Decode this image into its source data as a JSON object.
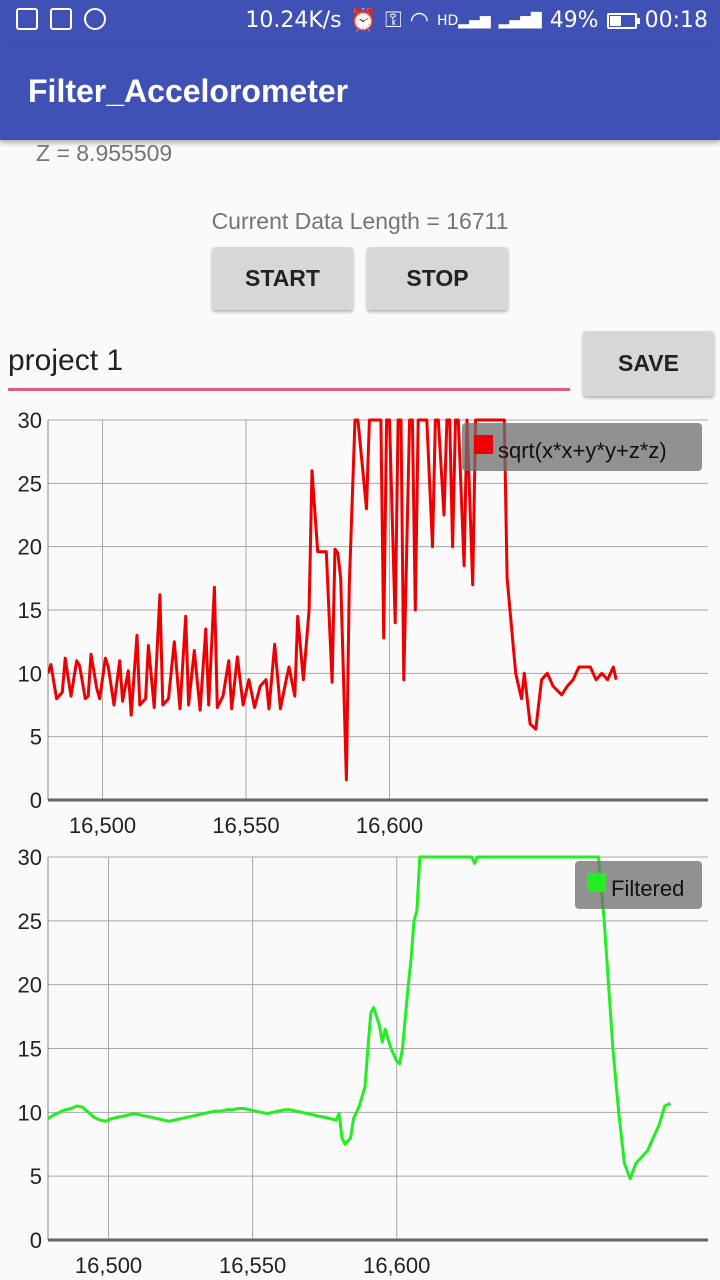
{
  "status_bar": {
    "net_speed": "10.24K/s",
    "battery": "49%",
    "battery_level": 0.49,
    "time": "00:18",
    "icons": [
      "image-icon",
      "sd-card-icon",
      "more-icon",
      "alarm-icon",
      "key-icon",
      "wifi-icon",
      "hd-signal-icon",
      "signal-icon",
      "battery-icon"
    ]
  },
  "app_bar": {
    "title": "Filter_Accelorometer"
  },
  "readout": {
    "z": "Z = 8.955509"
  },
  "data_length": "Current Data Length = 16711",
  "buttons": {
    "start": "START",
    "stop": "STOP",
    "save": "SAVE"
  },
  "project_input": {
    "value": "project 1"
  },
  "colors": {
    "primary": "#3f51b5",
    "accent": "#e05a86",
    "raw": "#ee0000",
    "filtered": "#22ee22"
  },
  "chart_data": [
    {
      "type": "line",
      "xlim": [
        16481,
        16711
      ],
      "ylim": [
        0,
        30
      ],
      "x_ticks": [
        16500,
        16550,
        16600
      ],
      "x_tick_labels": [
        "16,500",
        "16,550",
        "16,600"
      ],
      "y_ticks": [
        0,
        5,
        10,
        15,
        20,
        25,
        30
      ],
      "grid": true,
      "legend_position": "top-right",
      "series": [
        {
          "name": "sqrt(x*x+y*y+z*z)",
          "color": "#ee0000",
          "points": [
            [
              16481,
              10
            ],
            [
              16482,
              10.7
            ],
            [
              16484,
              8
            ],
            [
              16486,
              8.5
            ],
            [
              16487,
              11.2
            ],
            [
              16489,
              8.2
            ],
            [
              16491,
              11
            ],
            [
              16492,
              10.6
            ],
            [
              16494,
              8
            ],
            [
              16495,
              8.2
            ],
            [
              16496,
              11.5
            ],
            [
              16498,
              8.8
            ],
            [
              16499,
              8
            ],
            [
              16501,
              11.2
            ],
            [
              16502,
              10.5
            ],
            [
              16504,
              7.5
            ],
            [
              16506,
              11
            ],
            [
              16507,
              7.8
            ],
            [
              16509,
              10.2
            ],
            [
              16510,
              6.7
            ],
            [
              16512,
              13
            ],
            [
              16513,
              7.5
            ],
            [
              16515,
              8
            ],
            [
              16516,
              12.2
            ],
            [
              16518,
              7.3
            ],
            [
              16520,
              16.2
            ],
            [
              16521,
              7.5
            ],
            [
              16523,
              8
            ],
            [
              16525,
              12.5
            ],
            [
              16527,
              7.2
            ],
            [
              16529,
              14.5
            ],
            [
              16530,
              7.5
            ],
            [
              16532,
              11.8
            ],
            [
              16534,
              7.1
            ],
            [
              16536,
              13.5
            ],
            [
              16537,
              7.5
            ],
            [
              16539,
              16.8
            ],
            [
              16540,
              7.3
            ],
            [
              16542,
              8.2
            ],
            [
              16544,
              11
            ],
            [
              16545,
              7.2
            ],
            [
              16547,
              11.3
            ],
            [
              16549,
              7.5
            ],
            [
              16551,
              9.5
            ],
            [
              16553,
              7.3
            ],
            [
              16555,
              9
            ],
            [
              16557,
              9.5
            ],
            [
              16558,
              7.2
            ],
            [
              16560,
              12.3
            ],
            [
              16562,
              7.2
            ],
            [
              16564,
              9.5
            ],
            [
              16565,
              10.5
            ],
            [
              16567,
              8.2
            ],
            [
              16568,
              14.5
            ],
            [
              16570,
              9.5
            ],
            [
              16572,
              15
            ],
            [
              16573,
              26
            ],
            [
              16575,
              19.6
            ],
            [
              16578,
              19.6
            ],
            [
              16580,
              9.3
            ],
            [
              16581,
              19.8
            ],
            [
              16582,
              19.5
            ],
            [
              16583,
              17.5
            ],
            [
              16585,
              1.6
            ],
            [
              16586,
              17
            ],
            [
              16588,
              30
            ],
            [
              16589,
              30
            ],
            [
              16592,
              23
            ],
            [
              16593,
              30
            ],
            [
              16595,
              30
            ],
            [
              16597,
              30
            ],
            [
              16598,
              12.8
            ],
            [
              16599,
              30
            ],
            [
              16600,
              30
            ],
            [
              16602,
              14
            ],
            [
              16603,
              30
            ],
            [
              16604,
              30
            ],
            [
              16605,
              9.5
            ],
            [
              16607,
              30
            ],
            [
              16608,
              30
            ],
            [
              16609,
              15
            ],
            [
              16610,
              30
            ],
            [
              16612,
              30
            ],
            [
              16613,
              30
            ],
            [
              16615,
              20
            ],
            [
              16616,
              30
            ],
            [
              16617,
              30
            ],
            [
              16619,
              22.5
            ],
            [
              16620,
              30
            ],
            [
              16621,
              30
            ],
            [
              16622,
              20
            ],
            [
              16623,
              30
            ],
            [
              16624,
              30
            ],
            [
              16626,
              18.5
            ],
            [
              16627,
              30
            ],
            [
              16629,
              17
            ],
            [
              16630,
              30
            ],
            [
              16632,
              30
            ],
            [
              16633,
              30
            ],
            [
              16634,
              30
            ],
            [
              16635,
              30
            ],
            [
              16636,
              30
            ],
            [
              16637,
              30
            ],
            [
              16638,
              30
            ],
            [
              16639,
              30
            ],
            [
              16640,
              30
            ],
            [
              16641,
              17.5
            ],
            [
              16644,
              10
            ],
            [
              16646,
              8
            ],
            [
              16647,
              10
            ],
            [
              16649,
              6
            ],
            [
              16651,
              5.6
            ],
            [
              16653,
              9.5
            ],
            [
              16655,
              10
            ],
            [
              16657,
              9
            ],
            [
              16660,
              8.3
            ],
            [
              16662,
              9
            ],
            [
              16664,
              9.5
            ],
            [
              16666,
              10.5
            ],
            [
              16668,
              10.5
            ],
            [
              16670,
              10.5
            ],
            [
              16672,
              9.5
            ],
            [
              16674,
              10
            ],
            [
              16676,
              9.5
            ],
            [
              16678,
              10.5
            ],
            [
              16679,
              9.5
            ]
          ]
        }
      ]
    },
    {
      "type": "line",
      "xlim": [
        16479,
        16708
      ],
      "ylim": [
        0,
        30
      ],
      "x_ticks": [
        16500,
        16550,
        16600
      ],
      "x_tick_labels": [
        "16,500",
        "16,550",
        "16,600"
      ],
      "y_ticks": [
        0,
        5,
        10,
        15,
        20,
        25,
        30
      ],
      "grid": true,
      "legend_position": "top-right",
      "series": [
        {
          "name": "Filtered",
          "color": "#22ee22",
          "points": [
            [
              16479,
              9.5
            ],
            [
              16481,
              9.8
            ],
            [
              16483,
              10
            ],
            [
              16485,
              10.2
            ],
            [
              16487,
              10.3
            ],
            [
              16489,
              10.5
            ],
            [
              16491,
              10.4
            ],
            [
              16493,
              10
            ],
            [
              16495,
              9.6
            ],
            [
              16497,
              9.4
            ],
            [
              16499,
              9.3
            ],
            [
              16501,
              9.5
            ],
            [
              16503,
              9.6
            ],
            [
              16505,
              9.7
            ],
            [
              16507,
              9.8
            ],
            [
              16509,
              9.9
            ],
            [
              16511,
              9.8
            ],
            [
              16513,
              9.7
            ],
            [
              16515,
              9.6
            ],
            [
              16517,
              9.5
            ],
            [
              16519,
              9.4
            ],
            [
              16521,
              9.3
            ],
            [
              16523,
              9.4
            ],
            [
              16525,
              9.5
            ],
            [
              16527,
              9.6
            ],
            [
              16529,
              9.7
            ],
            [
              16531,
              9.8
            ],
            [
              16533,
              9.9
            ],
            [
              16535,
              10
            ],
            [
              16537,
              10.1
            ],
            [
              16539,
              10.1
            ],
            [
              16541,
              10.2
            ],
            [
              16543,
              10.2
            ],
            [
              16545,
              10.3
            ],
            [
              16547,
              10.3
            ],
            [
              16549,
              10.2
            ],
            [
              16551,
              10.1
            ],
            [
              16553,
              10
            ],
            [
              16555,
              9.9
            ],
            [
              16557,
              10
            ],
            [
              16559,
              10.1
            ],
            [
              16561,
              10.2
            ],
            [
              16563,
              10.2
            ],
            [
              16565,
              10.1
            ],
            [
              16567,
              10
            ],
            [
              16569,
              9.9
            ],
            [
              16571,
              9.8
            ],
            [
              16573,
              9.7
            ],
            [
              16575,
              9.6
            ],
            [
              16577,
              9.5
            ],
            [
              16579,
              9.4
            ],
            [
              16580,
              9.9
            ],
            [
              16581,
              8
            ],
            [
              16582,
              7.5
            ],
            [
              16584,
              8
            ],
            [
              16585,
              9.5
            ],
            [
              16587,
              10.5
            ],
            [
              16589,
              12
            ],
            [
              16590,
              15
            ],
            [
              16591,
              17.8
            ],
            [
              16592,
              18.2
            ],
            [
              16593,
              17.5
            ],
            [
              16594,
              16.8
            ],
            [
              16595,
              15.5
            ],
            [
              16596,
              16.5
            ],
            [
              16598,
              15
            ],
            [
              16600,
              14
            ],
            [
              16601,
              13.8
            ],
            [
              16602,
              15
            ],
            [
              16604,
              20
            ],
            [
              16605,
              22
            ],
            [
              16606,
              25
            ],
            [
              16607,
              25.8
            ],
            [
              16608,
              30
            ],
            [
              16610,
              30
            ],
            [
              16615,
              30
            ],
            [
              16620,
              30
            ],
            [
              16625,
              30
            ],
            [
              16626,
              30
            ],
            [
              16627,
              29.5
            ],
            [
              16628,
              30
            ],
            [
              16630,
              30
            ],
            [
              16635,
              30
            ],
            [
              16640,
              30
            ],
            [
              16645,
              30
            ],
            [
              16650,
              30
            ],
            [
              16655,
              30
            ],
            [
              16660,
              30
            ],
            [
              16665,
              30
            ],
            [
              16670,
              30
            ],
            [
              16672,
              25
            ],
            [
              16675,
              15
            ],
            [
              16677,
              10
            ],
            [
              16679,
              6
            ],
            [
              16681,
              4.8
            ],
            [
              16683,
              6
            ],
            [
              16685,
              6.5
            ],
            [
              16687,
              7
            ],
            [
              16689,
              8
            ],
            [
              16691,
              9
            ],
            [
              16693,
              10.5
            ],
            [
              16695,
              10.7
            ]
          ]
        }
      ]
    }
  ]
}
